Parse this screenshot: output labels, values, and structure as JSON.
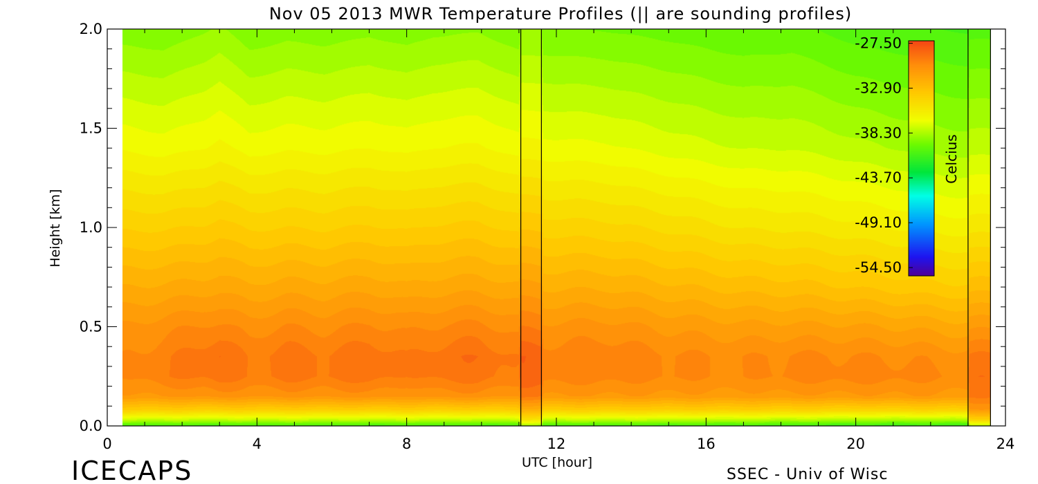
{
  "chart_data": {
    "type": "heatmap",
    "title": "Nov 05 2013 MWR Temperature Profiles (|| are sounding profiles)",
    "xlabel": "UTC [hour]",
    "ylabel": "Height [km]",
    "xlim": [
      0,
      24
    ],
    "ylim": [
      0.0,
      2.0
    ],
    "x_ticks": [
      "0",
      "4",
      "8",
      "12",
      "16",
      "20",
      "24"
    ],
    "x_tick_values": [
      0,
      4,
      8,
      12,
      16,
      20,
      24
    ],
    "y_ticks": [
      "0.0",
      "0.5",
      "1.0",
      "1.5",
      "2.0"
    ],
    "y_tick_values": [
      0.0,
      0.5,
      1.0,
      1.5,
      2.0
    ],
    "colorbar": {
      "label": "Celcius",
      "ticks": [
        "-27.50",
        "-32.90",
        "-38.30",
        "-43.70",
        "-49.10",
        "-54.50"
      ],
      "tick_values": [
        -27.5,
        -32.9,
        -38.3,
        -43.7,
        -49.1,
        -54.5
      ],
      "range": [
        -55.5,
        -27.2
      ],
      "colormap": "rainbow"
    },
    "data_extent_x": [
      0.4,
      23.6
    ],
    "sounding_times_hour": [
      11.05,
      11.6,
      23.0,
      23.6
    ],
    "profile_heights_km": [
      0.0,
      0.03,
      0.08,
      0.15,
      0.25,
      0.35,
      0.5,
      0.7,
      1.0,
      1.4,
      2.0
    ],
    "profiles": [
      {
        "hour": 0.4,
        "temps": [
          -40.5,
          -37.5,
          -33.5,
          -30.5,
          -29.8,
          -29.8,
          -30.3,
          -31.6,
          -33.6,
          -36.1,
          -38.9
        ]
      },
      {
        "hour": 1.5,
        "temps": [
          -40.5,
          -37.5,
          -33.5,
          -30.3,
          -29.2,
          -29.3,
          -30.0,
          -31.5,
          -33.6,
          -36.3,
          -39.0
        ]
      },
      {
        "hour": 2.6,
        "temps": [
          -40.6,
          -37.6,
          -33.6,
          -30.2,
          -28.9,
          -28.7,
          -29.6,
          -31.3,
          -33.4,
          -36.0,
          -38.6
        ]
      },
      {
        "hour": 3.0,
        "temps": [
          -40.6,
          -37.6,
          -33.6,
          -30.0,
          -28.6,
          -28.4,
          -29.6,
          -31.2,
          -33.2,
          -35.8,
          -38.4
        ]
      },
      {
        "hour": 3.8,
        "temps": [
          -40.5,
          -37.5,
          -33.5,
          -30.3,
          -29.2,
          -29.2,
          -30.0,
          -31.5,
          -33.6,
          -36.3,
          -39.0
        ]
      },
      {
        "hour": 4.8,
        "temps": [
          -40.5,
          -37.5,
          -33.6,
          -30.1,
          -28.8,
          -28.7,
          -29.7,
          -31.3,
          -33.5,
          -36.1,
          -38.8
        ]
      },
      {
        "hour": 5.8,
        "temps": [
          -40.5,
          -37.5,
          -33.5,
          -30.2,
          -29.0,
          -29.0,
          -29.9,
          -31.4,
          -33.6,
          -36.2,
          -38.9
        ]
      },
      {
        "hour": 7.0,
        "temps": [
          -40.6,
          -37.6,
          -33.6,
          -30.0,
          -28.7,
          -28.6,
          -29.6,
          -31.2,
          -33.4,
          -36.0,
          -38.7
        ]
      },
      {
        "hour": 8.0,
        "temps": [
          -40.5,
          -37.5,
          -33.5,
          -30.3,
          -29.2,
          -29.1,
          -29.9,
          -31.5,
          -33.6,
          -36.2,
          -38.9
        ]
      },
      {
        "hour": 8.7,
        "temps": [
          -40.5,
          -37.6,
          -33.6,
          -30.1,
          -28.9,
          -28.8,
          -29.7,
          -31.3,
          -33.4,
          -36.0,
          -38.7
        ]
      },
      {
        "hour": 9.9,
        "temps": [
          -40.6,
          -37.6,
          -33.6,
          -30.0,
          -28.7,
          -28.5,
          -29.5,
          -31.2,
          -33.3,
          -35.9,
          -38.6
        ]
      },
      {
        "hour": 11.0,
        "temps": [
          -40.5,
          -37.5,
          -33.5,
          -30.4,
          -29.3,
          -29.2,
          -30.0,
          -31.5,
          -33.7,
          -36.3,
          -39.0
        ]
      },
      {
        "hour": 11.05,
        "temps": [
          -38.5,
          -35.0,
          -31.8,
          -29.0,
          -28.0,
          -28.0,
          -29.2,
          -30.8,
          -33.0,
          -35.8,
          -38.5
        ]
      },
      {
        "hour": 11.6,
        "temps": [
          -38.5,
          -35.0,
          -31.8,
          -29.0,
          -28.0,
          -28.0,
          -29.2,
          -30.8,
          -33.0,
          -35.8,
          -38.5
        ]
      },
      {
        "hour": 11.65,
        "temps": [
          -40.5,
          -37.5,
          -33.5,
          -30.4,
          -29.4,
          -29.4,
          -30.2,
          -31.7,
          -33.8,
          -36.4,
          -39.1
        ]
      },
      {
        "hour": 13.3,
        "temps": [
          -40.5,
          -37.5,
          -33.5,
          -30.4,
          -29.4,
          -29.2,
          -30.1,
          -31.7,
          -33.9,
          -36.5,
          -39.2
        ]
      },
      {
        "hour": 15.0,
        "temps": [
          -40.6,
          -37.6,
          -33.6,
          -30.5,
          -29.6,
          -29.6,
          -30.5,
          -32.1,
          -34.3,
          -36.9,
          -39.4
        ]
      },
      {
        "hour": 17.0,
        "temps": [
          -40.7,
          -37.7,
          -33.6,
          -30.6,
          -29.8,
          -29.8,
          -30.8,
          -32.5,
          -34.8,
          -37.3,
          -39.7
        ]
      },
      {
        "hour": 18.3,
        "temps": [
          -40.8,
          -37.8,
          -33.7,
          -30.5,
          -29.5,
          -29.6,
          -30.8,
          -32.6,
          -34.9,
          -37.3,
          -39.6
        ]
      },
      {
        "hour": 20.0,
        "temps": [
          -41.0,
          -38.0,
          -33.9,
          -30.5,
          -29.4,
          -29.7,
          -30.9,
          -32.9,
          -35.2,
          -37.7,
          -40.1
        ]
      },
      {
        "hour": 21.5,
        "temps": [
          -41.0,
          -38.0,
          -33.8,
          -30.4,
          -29.5,
          -29.8,
          -31.1,
          -33.2,
          -35.5,
          -38.0,
          -40.3
        ]
      },
      {
        "hour": 23.0,
        "temps": [
          -41.0,
          -38.0,
          -33.8,
          -30.6,
          -29.8,
          -30.1,
          -31.4,
          -33.4,
          -35.7,
          -38.2,
          -40.5
        ]
      },
      {
        "hour": 23.05,
        "temps": [
          -38.0,
          -34.0,
          -30.5,
          -29.0,
          -28.6,
          -29.0,
          -30.5,
          -32.5,
          -35.0,
          -37.5,
          -40.0
        ]
      },
      {
        "hour": 23.6,
        "temps": [
          -38.0,
          -34.0,
          -30.5,
          -29.0,
          -28.6,
          -29.0,
          -30.5,
          -32.5,
          -35.0,
          -37.5,
          -40.0
        ]
      }
    ]
  },
  "footer": {
    "logo_text": "ICECAPS",
    "credit_text": "SSEC - Univ of Wisc"
  }
}
